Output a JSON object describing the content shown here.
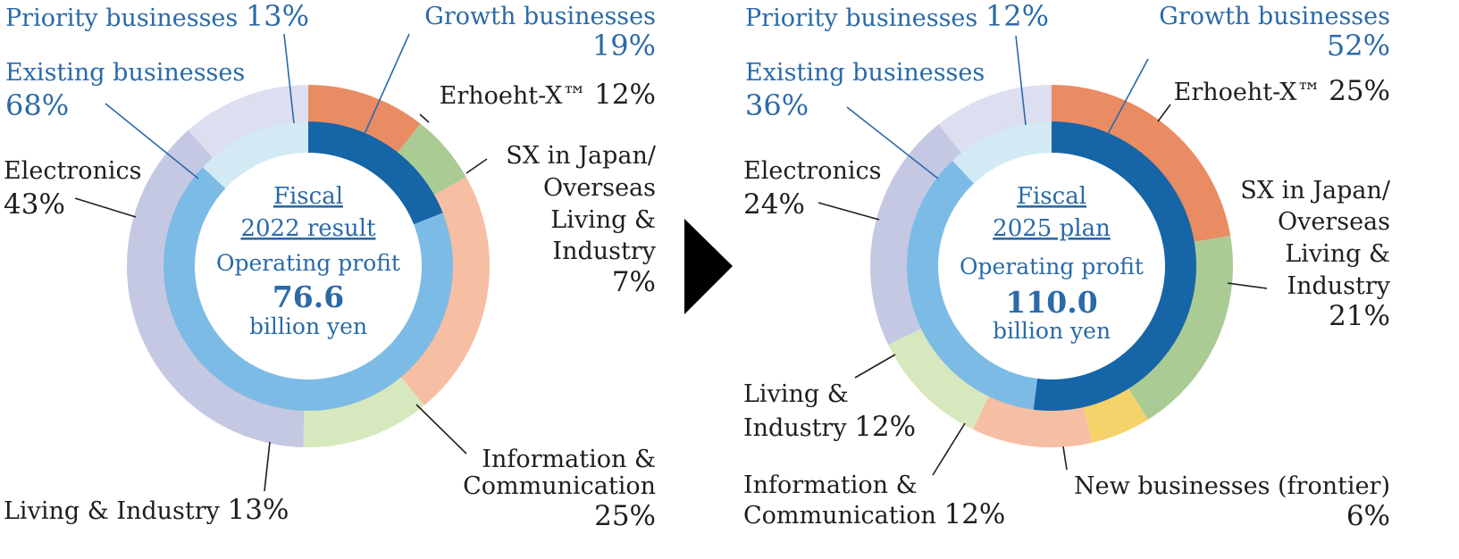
{
  "colors": {
    "label_blue": "#2a6aa8",
    "text_dark": "#1e1e1e",
    "growth": "#1565a7",
    "existing": "#7cbbe5",
    "priority": "#d3eaf4",
    "erhoeht": "#e98c63",
    "sx": "#aacb94",
    "info_comm": "#f6bea3",
    "living": "#d7e8be",
    "electronics": "#c5c8e2",
    "priority_outer": "#dcdff0",
    "new_business": "#f6d26a",
    "arrow": "#000000"
  },
  "arrow_icon": "play-triangle-icon",
  "chart_data": [
    {
      "type": "pie",
      "center_title": [
        "Fiscal",
        "2022 result"
      ],
      "center_metric": "Operating profit",
      "center_value": "76.6",
      "center_unit": "billion yen",
      "inner_ring": [
        {
          "name": "Growth businesses",
          "label": "Growth businesses",
          "pct_text": "19%",
          "value": 19
        },
        {
          "name": "Existing businesses",
          "label": "Existing businesses",
          "pct_text": "68%",
          "value": 68
        },
        {
          "name": "Priority businesses",
          "label": "Priority businesses",
          "pct_text": "13%",
          "value": 13
        }
      ],
      "outer_ring": [
        {
          "name": "Erhoeht-X",
          "label": "Erhoeht-X™",
          "pct_text": "12%",
          "value": 12
        },
        {
          "name": "SX in Japan/Overseas Living & Industry",
          "label_lines": [
            "SX in Japan/",
            "Overseas",
            "Living &",
            "Industry"
          ],
          "pct_text": "7%",
          "value": 7
        },
        {
          "name": "Information & Communication",
          "label_lines": [
            "Information &",
            "Communication"
          ],
          "pct_text": "25%",
          "value": 25
        },
        {
          "name": "Living & Industry",
          "label": "Living & Industry",
          "pct_text": "13%",
          "value": 13
        },
        {
          "name": "Electronics",
          "label": "Electronics",
          "pct_text": "43%",
          "value": 43
        }
      ]
    },
    {
      "type": "pie",
      "center_title": [
        "Fiscal",
        "2025 plan"
      ],
      "center_metric": "Operating profit",
      "center_value": "110.0",
      "center_unit": "billion yen",
      "inner_ring": [
        {
          "name": "Growth businesses",
          "label": "Growth businesses",
          "pct_text": "52%",
          "value": 52
        },
        {
          "name": "Existing businesses",
          "label": "Existing businesses",
          "pct_text": "36%",
          "value": 36
        },
        {
          "name": "Priority businesses",
          "label": "Priority businesses",
          "pct_text": "12%",
          "value": 12
        }
      ],
      "outer_ring": [
        {
          "name": "Erhoeht-X",
          "label": "Erhoeht-X™",
          "pct_text": "25%",
          "value": 25
        },
        {
          "name": "SX in Japan/Overseas Living & Industry",
          "label_lines": [
            "SX in Japan/",
            "Overseas",
            "Living &",
            "Industry"
          ],
          "pct_text": "21%",
          "value": 21
        },
        {
          "name": "New businesses (frontier)",
          "label": "New businesses (frontier)",
          "pct_text": "6%",
          "value": 6
        },
        {
          "name": "Information & Communication",
          "label_lines": [
            "Information &",
            "Communication"
          ],
          "pct_text": "12%",
          "value": 12
        },
        {
          "name": "Living & Industry",
          "label_lines": [
            "Living &",
            "Industry"
          ],
          "pct_text": "12%",
          "value": 12
        },
        {
          "name": "Electronics",
          "label": "Electronics",
          "pct_text": "24%",
          "value": 24
        }
      ]
    }
  ]
}
